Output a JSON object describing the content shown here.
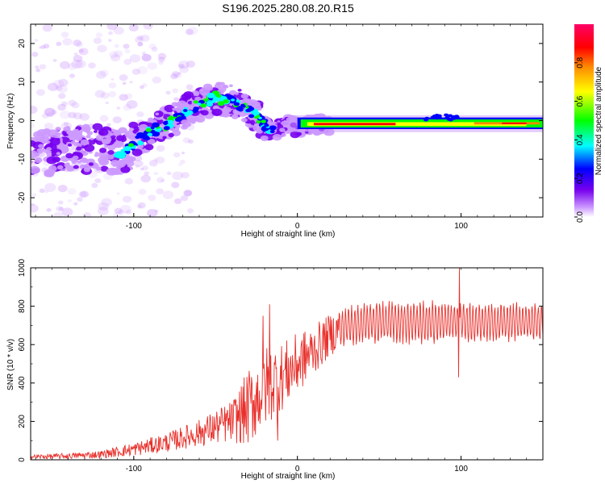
{
  "title": "S196.2025.280.08.20.R15",
  "chart_data": [
    {
      "type": "heatmap",
      "xlabel": "Height of straight line (km)",
      "ylabel": "Frequency (Hz)",
      "xlim": [
        -163,
        150
      ],
      "ylim": [
        -25,
        25
      ],
      "xticks": [
        -100,
        0,
        100
      ],
      "yticks": [
        -20,
        -10,
        0,
        10,
        20
      ],
      "ridge": {
        "x": [
          -163,
          -150,
          -140,
          -130,
          -120,
          -110,
          -100,
          -90,
          -80,
          -70,
          -60,
          -50,
          -45,
          -40,
          -35,
          -30,
          -25,
          -20,
          -15,
          -10,
          -5,
          0,
          5,
          10,
          20,
          40,
          60,
          80,
          90,
          100,
          120,
          140,
          150
        ],
        "y": [
          -8,
          -8,
          -7.5,
          -7.5,
          -7.5,
          -9,
          -6,
          -3,
          -1,
          2,
          4,
          6,
          5.5,
          5,
          4,
          3,
          1,
          -1,
          -3,
          -2,
          -1,
          -2,
          -1,
          -1,
          -1,
          -1,
          -1,
          -0.5,
          0,
          -0.5,
          -0.5,
          0,
          0
        ]
      },
      "colorbar": {
        "label": "Normalized spectral amplitude",
        "range": [
          0,
          1
        ],
        "ticks": [
          0.0,
          0.2,
          0.4,
          0.6,
          0.8
        ],
        "colors": [
          "#ffffff",
          "#cc99ff",
          "#7700ee",
          "#0000ff",
          "#00ffff",
          "#00ff00",
          "#ffff00",
          "#ff8800",
          "#ff0000",
          "#ff0066"
        ]
      }
    },
    {
      "type": "line",
      "xlabel": "Height of straight line (km)",
      "ylabel": "SNR (10 * v/v)",
      "xlim": [
        -163,
        150
      ],
      "ylim": [
        0,
        1000
      ],
      "xticks": [
        -100,
        0,
        100
      ],
      "yticks": [
        0,
        200,
        400,
        600,
        800,
        1000
      ],
      "color": "#e8302b",
      "envelope": {
        "x": [
          -163,
          -140,
          -120,
          -100,
          -80,
          -60,
          -40,
          -30,
          -20,
          -10,
          0,
          10,
          20,
          30,
          50,
          80,
          100,
          120,
          150
        ],
        "mean": [
          15,
          20,
          28,
          55,
          90,
          140,
          200,
          270,
          380,
          430,
          500,
          570,
          650,
          700,
          720,
          715,
          720,
          715,
          720
        ],
        "amp": [
          12,
          15,
          20,
          35,
          50,
          70,
          110,
          200,
          220,
          180,
          160,
          130,
          110,
          100,
          110,
          110,
          100,
          100,
          100
        ]
      },
      "spikes": [
        {
          "x": 99,
          "y": 1000
        },
        {
          "x": 98.5,
          "y": 430
        },
        {
          "x": -17,
          "y": 810
        },
        {
          "x": -21,
          "y": 750
        },
        {
          "x": -12,
          "y": 100
        }
      ]
    }
  ]
}
